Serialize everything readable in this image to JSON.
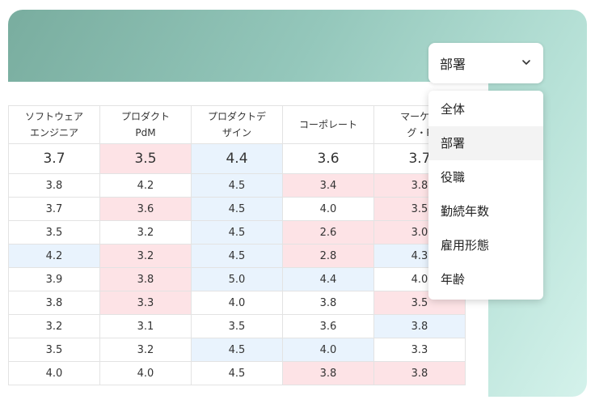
{
  "dropdown": {
    "selected": "部署",
    "chevron_icon": "chevron-down-icon"
  },
  "menu": {
    "items": [
      "全体",
      "部署",
      "役職",
      "勤続年数",
      "雇用形態",
      "年齢"
    ],
    "highlighted": "部署"
  },
  "table": {
    "headers": [
      [
        "ソフトウェア",
        "エンジニア"
      ],
      [
        "プロダクト",
        "PdM"
      ],
      [
        "プロダクトデ",
        "ザイン"
      ],
      [
        "コーポレート"
      ],
      [
        "マーケテ",
        "グ・P"
      ]
    ],
    "rows": [
      [
        {
          "v": "3.7",
          "c": ""
        },
        {
          "v": "3.5",
          "c": "red"
        },
        {
          "v": "4.4",
          "c": "blue"
        },
        {
          "v": "3.6",
          "c": ""
        },
        {
          "v": "3.7",
          "c": ""
        }
      ],
      [
        {
          "v": "3.8",
          "c": ""
        },
        {
          "v": "4.2",
          "c": ""
        },
        {
          "v": "4.5",
          "c": "blue"
        },
        {
          "v": "3.4",
          "c": "red"
        },
        {
          "v": "3.8",
          "c": "red"
        }
      ],
      [
        {
          "v": "3.7",
          "c": ""
        },
        {
          "v": "3.6",
          "c": "red"
        },
        {
          "v": "4.5",
          "c": "blue"
        },
        {
          "v": "4.0",
          "c": ""
        },
        {
          "v": "3.5",
          "c": "red"
        }
      ],
      [
        {
          "v": "3.5",
          "c": ""
        },
        {
          "v": "3.2",
          "c": ""
        },
        {
          "v": "4.5",
          "c": "blue"
        },
        {
          "v": "2.6",
          "c": "red"
        },
        {
          "v": "3.0",
          "c": "red"
        }
      ],
      [
        {
          "v": "4.2",
          "c": "blue"
        },
        {
          "v": "3.2",
          "c": "red"
        },
        {
          "v": "4.5",
          "c": "blue"
        },
        {
          "v": "2.8",
          "c": "red"
        },
        {
          "v": "4.3",
          "c": "blue"
        }
      ],
      [
        {
          "v": "3.9",
          "c": ""
        },
        {
          "v": "3.8",
          "c": "red"
        },
        {
          "v": "5.0",
          "c": "blue"
        },
        {
          "v": "4.4",
          "c": "blue"
        },
        {
          "v": "4.0",
          "c": ""
        }
      ],
      [
        {
          "v": "3.8",
          "c": ""
        },
        {
          "v": "3.3",
          "c": "red"
        },
        {
          "v": "4.0",
          "c": ""
        },
        {
          "v": "3.8",
          "c": ""
        },
        {
          "v": "3.5",
          "c": "red"
        }
      ],
      [
        {
          "v": "3.2",
          "c": ""
        },
        {
          "v": "3.1",
          "c": ""
        },
        {
          "v": "3.5",
          "c": ""
        },
        {
          "v": "3.6",
          "c": ""
        },
        {
          "v": "3.8",
          "c": "blue"
        }
      ],
      [
        {
          "v": "3.5",
          "c": ""
        },
        {
          "v": "3.2",
          "c": ""
        },
        {
          "v": "4.5",
          "c": "blue"
        },
        {
          "v": "4.0",
          "c": "blue"
        },
        {
          "v": "3.3",
          "c": ""
        }
      ],
      [
        {
          "v": "4.0",
          "c": ""
        },
        {
          "v": "4.0",
          "c": ""
        },
        {
          "v": "4.5",
          "c": ""
        },
        {
          "v": "3.8",
          "c": "red"
        },
        {
          "v": "3.8",
          "c": "red"
        }
      ]
    ]
  },
  "colors": {
    "low": "#c0303c",
    "high": "#2d6aa6",
    "low_bg": "#fde3e6",
    "high_bg": "#e9f3fd"
  }
}
